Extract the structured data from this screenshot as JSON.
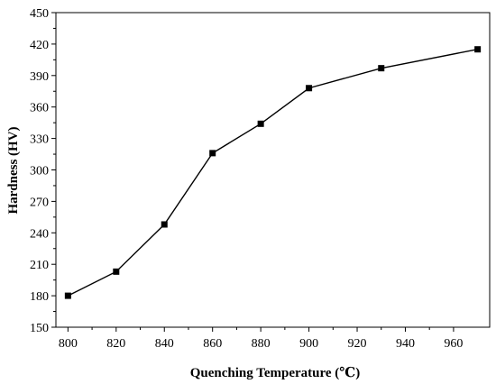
{
  "chart_data": {
    "type": "line",
    "title": "",
    "xlabel": "Quenching Temperature (℃)",
    "ylabel": "Hardness (HV)",
    "xlim": [
      795,
      975
    ],
    "ylim": [
      150,
      450
    ],
    "x_ticks": [
      800,
      820,
      840,
      860,
      880,
      900,
      920,
      940,
      960
    ],
    "y_ticks": [
      150,
      180,
      210,
      240,
      270,
      300,
      330,
      360,
      390,
      420,
      450
    ],
    "grid": false,
    "marker": "square",
    "color": "#000000",
    "series": [
      {
        "x": [
          800,
          820,
          840,
          860,
          880,
          900,
          930,
          970
        ],
        "y": [
          180,
          203,
          248,
          316,
          344,
          378,
          397,
          415
        ]
      }
    ]
  }
}
